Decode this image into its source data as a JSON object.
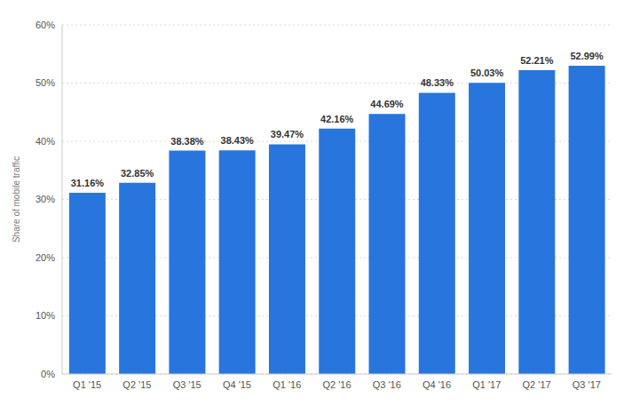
{
  "chart_data": {
    "type": "bar",
    "y_label": "Share of mobile traffic",
    "categories": [
      "Q1 '15",
      "Q2 '15",
      "Q3 '15",
      "Q4 '15",
      "Q1 '16",
      "Q2 '16",
      "Q3 '16",
      "Q4 '16",
      "Q1 '17",
      "Q2 '17",
      "Q3 '17"
    ],
    "values": [
      31.16,
      32.85,
      38.38,
      38.43,
      39.47,
      42.16,
      44.69,
      48.33,
      50.03,
      52.21,
      52.99
    ],
    "value_labels": [
      "31.16%",
      "32.85%",
      "38.38%",
      "38.43%",
      "39.47%",
      "42.16%",
      "44.69%",
      "48.33%",
      "50.03%",
      "52.21%",
      "52.99%"
    ],
    "data_labels": true,
    "color": "#2876dd",
    "ylim": [
      0,
      60
    ],
    "yticks": [
      {
        "value": 0,
        "label": "0%"
      },
      {
        "value": 10,
        "label": "10%"
      },
      {
        "value": 20,
        "label": "20%"
      },
      {
        "value": 30,
        "label": "30%"
      },
      {
        "value": 40,
        "label": "40%"
      },
      {
        "value": 50,
        "label": "50%"
      },
      {
        "value": 60,
        "label": "60%"
      }
    ],
    "grid": true
  }
}
